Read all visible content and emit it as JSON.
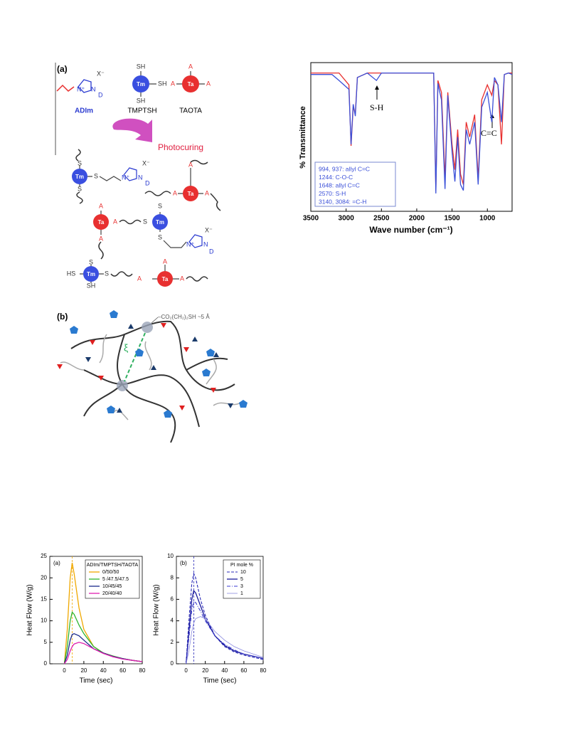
{
  "scheme": {
    "panel": "(a)",
    "compounds": [
      "ADIm",
      "TMPTSH",
      "TAOTA"
    ],
    "process": "Photocuring",
    "symbols": {
      "tm": "Tm",
      "ta": "Ta",
      "s": "S",
      "a": "A",
      "sh": "SH",
      "hs": "HS",
      "d": "D",
      "n": "N",
      "nplus": "N⁺",
      "x": "X⁻"
    }
  },
  "network": {
    "panel": "(b)",
    "group": "–CO₂(CH₂)₂SH ~5 Å",
    "mesh": "ξ"
  },
  "chart_data": [
    {
      "type": "line",
      "x": [
        3500,
        3200,
        3100,
        2960,
        2930,
        2900,
        2870,
        2840,
        2700,
        2570,
        2500,
        2000,
        1760,
        1730,
        1700,
        1650,
        1600,
        1560,
        1500,
        1460,
        1420,
        1380,
        1340,
        1300,
        1250,
        1180,
        1130,
        1080,
        1000,
        937,
        900,
        850,
        800,
        760,
        700,
        650
      ],
      "xlim": [
        3500,
        650
      ],
      "xticks": [
        3500,
        3000,
        2500,
        2000,
        1500,
        1000
      ],
      "ylim": [
        0,
        100
      ],
      "xlabel": "Wave number (cm⁻¹)",
      "ylabel": "% Transmittance",
      "annotations": [
        "S-H",
        "C=C"
      ],
      "legend_box": [
        "994, 937: allyl C=C",
        "1244: C-O-C",
        "1648: allyl C=C",
        "2570: S-H",
        "3140, 3084: =C-H"
      ],
      "series": [
        {
          "color": "#e8302f",
          "values": [
            93,
            93,
            93,
            85,
            44,
            70,
            66,
            90,
            93,
            93,
            93,
            93,
            93,
            14,
            88,
            80,
            22,
            80,
            45,
            28,
            55,
            25,
            18,
            60,
            50,
            65,
            22,
            75,
            85,
            78,
            88,
            85,
            45,
            92,
            93,
            93
          ]
        },
        {
          "color": "#3a4fd8",
          "values": [
            92,
            92,
            88,
            82,
            45,
            72,
            64,
            90,
            93,
            88,
            93,
            93,
            93,
            12,
            86,
            75,
            15,
            78,
            40,
            20,
            50,
            18,
            14,
            55,
            45,
            60,
            18,
            70,
            80,
            60,
            90,
            85,
            60,
            92,
            93,
            92
          ]
        }
      ]
    },
    {
      "type": "line",
      "panel": "(a)",
      "x": [
        0,
        3,
        6,
        8,
        10,
        15,
        20,
        30,
        40,
        50,
        60,
        70,
        80
      ],
      "xlim": [
        -15,
        80
      ],
      "xticks": [
        0,
        20,
        40,
        60,
        80
      ],
      "ylim": [
        0,
        25
      ],
      "yticks": [
        0,
        5,
        10,
        15,
        20,
        25
      ],
      "xlabel": "Time (sec)",
      "ylabel": "Heat Flow (W/g)",
      "legend_title": "ADIm/TMPTSH/TAOTA",
      "legend": "upper right",
      "dashed_line_x": 8,
      "series": [
        {
          "name": "0/50/50",
          "color": "#f0a800",
          "line_style": "solid",
          "values": [
            0,
            8,
            20,
            23.5,
            21,
            13,
            8,
            4,
            2.5,
            1.8,
            1.2,
            0.8,
            0.5
          ]
        },
        {
          "name": "5 /47.5/47.5",
          "color": "#2fb52f",
          "line_style": "solid",
          "values": [
            0,
            4,
            10,
            12,
            11.5,
            9,
            7,
            4,
            2.5,
            1.8,
            1.2,
            0.8,
            0.5
          ]
        },
        {
          "name": "10/45/45",
          "color": "#1a2a8a",
          "line_style": "solid",
          "values": [
            0,
            2,
            5.5,
            6.8,
            7,
            6.5,
            5.5,
            3.5,
            2.5,
            1.7,
            1.2,
            0.8,
            0.5
          ]
        },
        {
          "name": "20/40/40",
          "color": "#e020b0",
          "line_style": "solid",
          "values": [
            0,
            1,
            3,
            4,
            4.6,
            5,
            4.7,
            3.5,
            2.4,
            1.6,
            1.1,
            0.8,
            0.5
          ]
        }
      ]
    },
    {
      "type": "line",
      "panel": "(b)",
      "x": [
        0,
        3,
        6,
        8,
        10,
        15,
        20,
        30,
        40,
        50,
        60,
        70,
        80
      ],
      "xlim": [
        -10,
        80
      ],
      "xticks": [
        0,
        20,
        40,
        60,
        80
      ],
      "ylim": [
        0,
        10
      ],
      "yticks": [
        0,
        2,
        4,
        6,
        8,
        10
      ],
      "xlabel": "Time (sec)",
      "ylabel": "Heat Flow (W/g)",
      "legend_title": "PI mole %",
      "legend": "upper right",
      "dashed_line_x": 8,
      "series": [
        {
          "name": "10",
          "color": "#2a2ab8",
          "line_style": "dashed",
          "values": [
            0,
            4,
            7.5,
            8.4,
            8,
            6,
            4.5,
            2.6,
            1.6,
            1.1,
            0.8,
            0.6,
            0.4
          ]
        },
        {
          "name": "5",
          "color": "#1a1a9a",
          "line_style": "solid",
          "values": [
            0,
            3,
            6,
            6.8,
            6.6,
            5.4,
            4.2,
            2.6,
            1.7,
            1.2,
            0.9,
            0.7,
            0.5
          ]
        },
        {
          "name": "3",
          "color": "#3a3ad0",
          "line_style": "dashdot",
          "values": [
            0,
            2.4,
            5,
            5.8,
            5.7,
            4.9,
            4,
            2.6,
            1.8,
            1.3,
            0.9,
            0.7,
            0.5
          ]
        },
        {
          "name": "1",
          "color": "#8a8ae0",
          "line_style": "thin",
          "values": [
            0,
            1.2,
            3,
            3.8,
            4.2,
            4.4,
            4.2,
            3,
            2.2,
            1.6,
            1.2,
            0.9,
            0.6
          ]
        }
      ]
    }
  ]
}
